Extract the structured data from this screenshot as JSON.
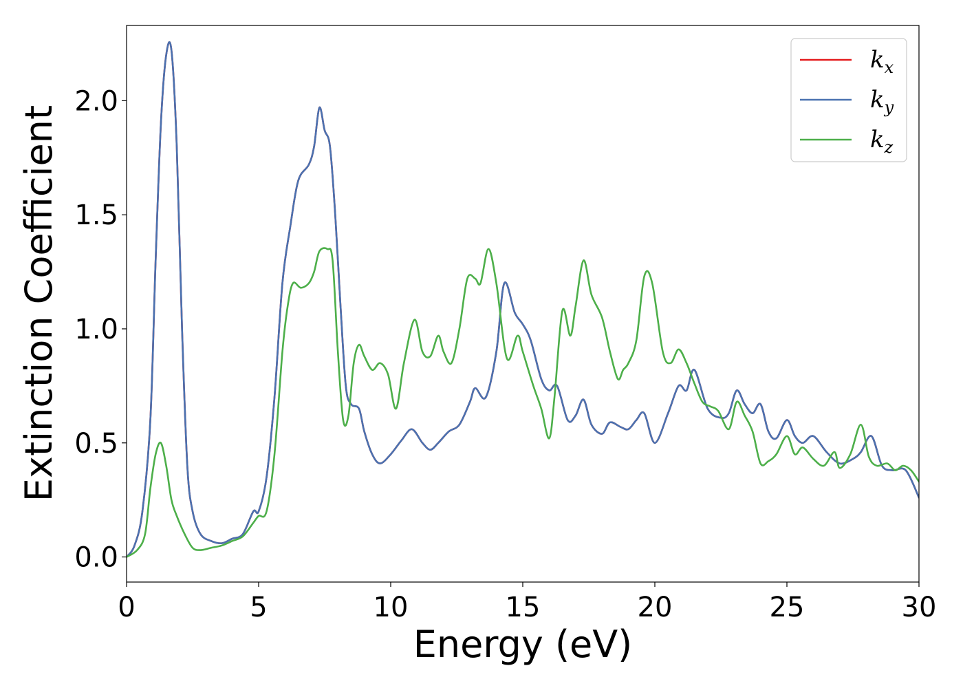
{
  "chart_data": {
    "type": "line",
    "xlabel": "Energy (eV)",
    "ylabel": "Extinction Coefficient",
    "xlim": [
      0,
      30
    ],
    "ylim": [
      -0.11,
      2.33
    ],
    "xticks": [
      0,
      5,
      10,
      15,
      20,
      25,
      30
    ],
    "xtick_labels": [
      "0",
      "5",
      "10",
      "15",
      "20",
      "25",
      "30"
    ],
    "yticks": [
      0.0,
      0.5,
      1.0,
      1.5,
      2.0
    ],
    "ytick_labels": [
      "0.0",
      "0.5",
      "1.0",
      "1.5",
      "2.0"
    ],
    "grid": false,
    "legend_position": "top-right",
    "series": [
      {
        "name": "k_x",
        "legend_base": "k",
        "legend_sub": "x",
        "color": "#e41a1c",
        "x": [
          0,
          0.3,
          0.6,
          0.9,
          1.1,
          1.3,
          1.5,
          1.7,
          1.9,
          2.1,
          2.3,
          2.5,
          2.8,
          3.2,
          3.6,
          4.0,
          4.4,
          4.8,
          5.0,
          5.3,
          5.6,
          5.9,
          6.2,
          6.5,
          6.9,
          7.1,
          7.3,
          7.5,
          7.7,
          7.9,
          8.1,
          8.3,
          8.5,
          8.8,
          9.0,
          9.3,
          9.6,
          10.0,
          10.4,
          10.8,
          11.2,
          11.5,
          11.8,
          12.2,
          12.6,
          13.0,
          13.2,
          13.6,
          14.0,
          14.3,
          14.7,
          15.0,
          15.3,
          15.7,
          16.0,
          16.3,
          16.7,
          17.0,
          17.3,
          17.6,
          18.0,
          18.3,
          18.7,
          19.0,
          19.3,
          19.6,
          20.0,
          20.5,
          20.9,
          21.2,
          21.5,
          22.0,
          22.5,
          22.8,
          23.1,
          23.4,
          23.7,
          24.0,
          24.3,
          24.6,
          25.0,
          25.3,
          25.6,
          26.0,
          26.5,
          27.0,
          27.5,
          27.8,
          28.2,
          28.6,
          29.0,
          29.5,
          30.0
        ],
        "y": [
          0.0,
          0.05,
          0.2,
          0.6,
          1.3,
          1.9,
          2.2,
          2.22,
          1.8,
          1.0,
          0.4,
          0.2,
          0.1,
          0.07,
          0.06,
          0.08,
          0.1,
          0.2,
          0.2,
          0.35,
          0.7,
          1.2,
          1.45,
          1.65,
          1.72,
          1.8,
          1.97,
          1.87,
          1.8,
          1.5,
          1.1,
          0.75,
          0.67,
          0.65,
          0.55,
          0.45,
          0.41,
          0.45,
          0.51,
          0.56,
          0.5,
          0.47,
          0.5,
          0.55,
          0.58,
          0.68,
          0.74,
          0.7,
          0.9,
          1.2,
          1.07,
          1.02,
          0.95,
          0.78,
          0.73,
          0.75,
          0.6,
          0.62,
          0.69,
          0.58,
          0.54,
          0.59,
          0.57,
          0.56,
          0.6,
          0.63,
          0.5,
          0.63,
          0.75,
          0.73,
          0.82,
          0.65,
          0.61,
          0.63,
          0.73,
          0.67,
          0.63,
          0.67,
          0.55,
          0.52,
          0.6,
          0.53,
          0.5,
          0.53,
          0.46,
          0.41,
          0.43,
          0.46,
          0.53,
          0.4,
          0.38,
          0.38,
          0.26
        ]
      },
      {
        "name": "k_y",
        "legend_base": "k",
        "legend_sub": "y",
        "color": "#4a72b0",
        "x": [
          0,
          0.3,
          0.6,
          0.9,
          1.1,
          1.3,
          1.5,
          1.7,
          1.9,
          2.1,
          2.3,
          2.5,
          2.8,
          3.2,
          3.6,
          4.0,
          4.4,
          4.8,
          5.0,
          5.3,
          5.6,
          5.9,
          6.2,
          6.5,
          6.9,
          7.1,
          7.3,
          7.5,
          7.7,
          7.9,
          8.1,
          8.3,
          8.5,
          8.8,
          9.0,
          9.3,
          9.6,
          10.0,
          10.4,
          10.8,
          11.2,
          11.5,
          11.8,
          12.2,
          12.6,
          13.0,
          13.2,
          13.6,
          14.0,
          14.3,
          14.7,
          15.0,
          15.3,
          15.7,
          16.0,
          16.3,
          16.7,
          17.0,
          17.3,
          17.6,
          18.0,
          18.3,
          18.7,
          19.0,
          19.3,
          19.6,
          20.0,
          20.5,
          20.9,
          21.2,
          21.5,
          22.0,
          22.5,
          22.8,
          23.1,
          23.4,
          23.7,
          24.0,
          24.3,
          24.6,
          25.0,
          25.3,
          25.6,
          26.0,
          26.5,
          27.0,
          27.5,
          27.8,
          28.2,
          28.6,
          29.0,
          29.5,
          30.0
        ],
        "y": [
          0.0,
          0.05,
          0.2,
          0.6,
          1.3,
          1.9,
          2.2,
          2.22,
          1.8,
          1.0,
          0.4,
          0.2,
          0.1,
          0.07,
          0.06,
          0.08,
          0.1,
          0.2,
          0.2,
          0.35,
          0.7,
          1.2,
          1.45,
          1.65,
          1.72,
          1.8,
          1.97,
          1.87,
          1.8,
          1.5,
          1.1,
          0.75,
          0.67,
          0.65,
          0.55,
          0.45,
          0.41,
          0.45,
          0.51,
          0.56,
          0.5,
          0.47,
          0.5,
          0.55,
          0.58,
          0.68,
          0.74,
          0.7,
          0.9,
          1.2,
          1.07,
          1.02,
          0.95,
          0.78,
          0.73,
          0.75,
          0.6,
          0.62,
          0.69,
          0.58,
          0.54,
          0.59,
          0.57,
          0.56,
          0.6,
          0.63,
          0.5,
          0.63,
          0.75,
          0.73,
          0.82,
          0.65,
          0.61,
          0.63,
          0.73,
          0.67,
          0.63,
          0.67,
          0.55,
          0.52,
          0.6,
          0.53,
          0.5,
          0.53,
          0.46,
          0.41,
          0.43,
          0.46,
          0.53,
          0.4,
          0.38,
          0.38,
          0.26
        ]
      },
      {
        "name": "k_z",
        "legend_base": "k",
        "legend_sub": "z",
        "color": "#4daf4a",
        "x": [
          0,
          0.4,
          0.7,
          0.9,
          1.1,
          1.3,
          1.5,
          1.7,
          1.9,
          2.2,
          2.5,
          2.8,
          3.2,
          3.6,
          4.0,
          4.4,
          4.8,
          5.0,
          5.3,
          5.6,
          5.9,
          6.1,
          6.3,
          6.6,
          6.9,
          7.1,
          7.3,
          7.6,
          7.8,
          8.0,
          8.2,
          8.4,
          8.6,
          8.8,
          9.0,
          9.3,
          9.6,
          9.9,
          10.2,
          10.5,
          10.9,
          11.2,
          11.5,
          11.8,
          12.0,
          12.3,
          12.6,
          12.9,
          13.2,
          13.4,
          13.7,
          14.0,
          14.4,
          14.8,
          15.0,
          15.4,
          15.7,
          16.0,
          16.2,
          16.5,
          16.8,
          17.0,
          17.3,
          17.6,
          18.0,
          18.3,
          18.6,
          18.8,
          19.0,
          19.3,
          19.6,
          19.9,
          20.3,
          20.6,
          20.9,
          21.2,
          21.5,
          21.8,
          22.1,
          22.4,
          22.8,
          23.1,
          23.4,
          23.7,
          24.0,
          24.3,
          24.6,
          25.0,
          25.3,
          25.6,
          26.0,
          26.4,
          26.8,
          27.0,
          27.4,
          27.8,
          28.1,
          28.4,
          28.8,
          29.1,
          29.4,
          29.7,
          30.0
        ],
        "y": [
          0.0,
          0.03,
          0.1,
          0.3,
          0.45,
          0.5,
          0.4,
          0.25,
          0.18,
          0.1,
          0.04,
          0.03,
          0.04,
          0.05,
          0.07,
          0.09,
          0.15,
          0.18,
          0.2,
          0.45,
          0.9,
          1.1,
          1.2,
          1.18,
          1.2,
          1.25,
          1.34,
          1.35,
          1.3,
          0.9,
          0.6,
          0.62,
          0.85,
          0.93,
          0.88,
          0.82,
          0.85,
          0.8,
          0.65,
          0.85,
          1.04,
          0.9,
          0.88,
          0.97,
          0.9,
          0.85,
          1.0,
          1.22,
          1.22,
          1.2,
          1.35,
          1.2,
          0.87,
          0.97,
          0.9,
          0.75,
          0.65,
          0.52,
          0.7,
          1.08,
          0.97,
          1.1,
          1.3,
          1.15,
          1.05,
          0.9,
          0.78,
          0.82,
          0.85,
          0.95,
          1.23,
          1.2,
          0.9,
          0.85,
          0.91,
          0.85,
          0.76,
          0.68,
          0.66,
          0.64,
          0.56,
          0.68,
          0.62,
          0.55,
          0.41,
          0.42,
          0.45,
          0.53,
          0.45,
          0.48,
          0.43,
          0.4,
          0.46,
          0.39,
          0.45,
          0.58,
          0.44,
          0.4,
          0.41,
          0.38,
          0.4,
          0.38,
          0.33
        ]
      }
    ]
  }
}
